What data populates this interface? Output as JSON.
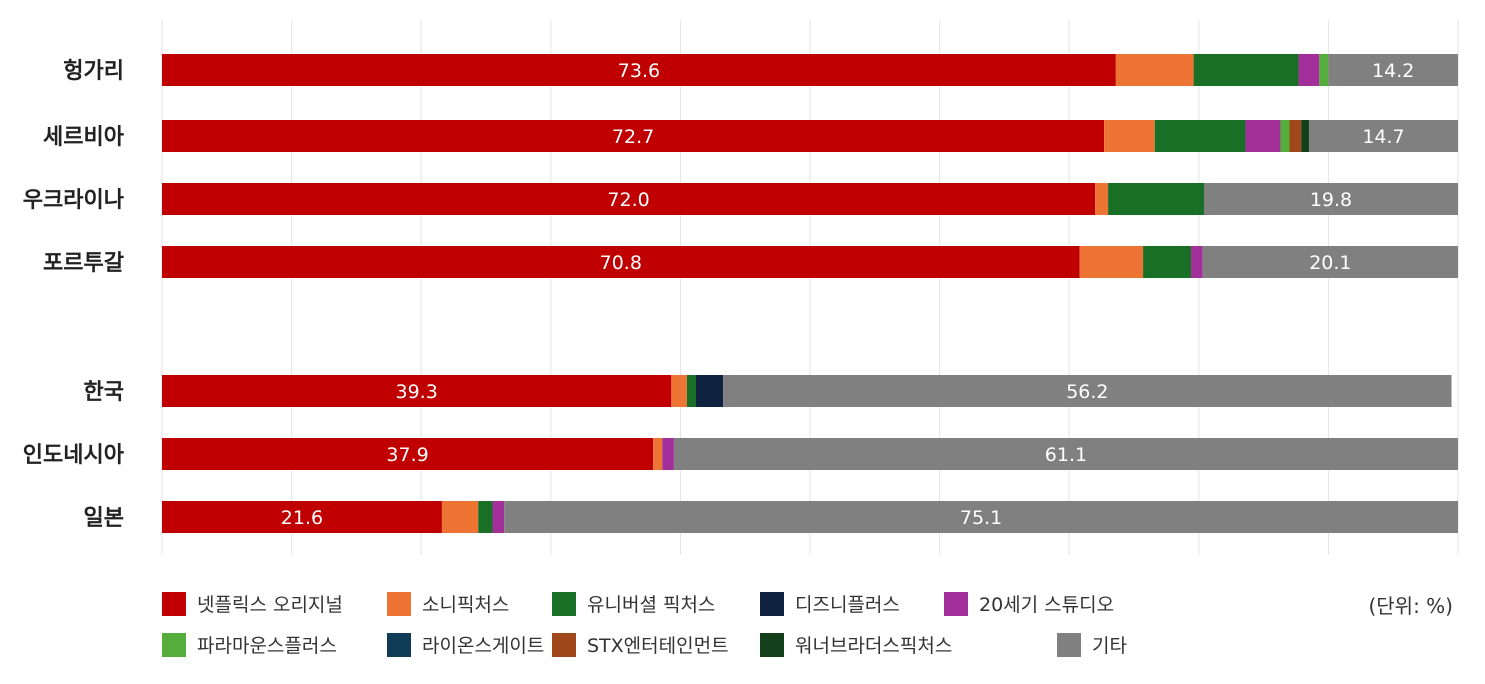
{
  "chart_data": {
    "type": "bar",
    "orientation": "horizontal",
    "stacked": true,
    "unit_label": "(단위: %)",
    "categories": [
      "헝가리",
      "세르비아",
      "우크라이나",
      "포르투갈",
      "한국",
      "인도네시아",
      "일본"
    ],
    "xlim": [
      0,
      100
    ],
    "grid": true,
    "legend_position": "bottom",
    "series": [
      {
        "name": "넷플릭스 오리지널",
        "color": "#c00000",
        "values": [
          73.6,
          72.7,
          72.0,
          70.8,
          39.3,
          37.9,
          21.6
        ],
        "labeled": true
      },
      {
        "name": "소니픽처스",
        "color": "#ed7433",
        "values": [
          6.0,
          3.9,
          1.0,
          4.9,
          1.2,
          0.7,
          2.8
        ]
      },
      {
        "name": "유니버셜 픽처스",
        "color": "#1a6f27",
        "values": [
          8.1,
          7.0,
          7.4,
          3.7,
          0.7,
          0.0,
          1.1
        ]
      },
      {
        "name": "디즈니플러스",
        "color": "#0f2340",
        "values": [
          0,
          0,
          0,
          0,
          2.1,
          0,
          0
        ]
      },
      {
        "name": "20세기 스튜디오",
        "color": "#a3309a",
        "values": [
          1.6,
          2.7,
          0,
          0.9,
          0,
          0.9,
          0.9
        ]
      },
      {
        "name": "파라마운스플러스",
        "color": "#55ad3b",
        "values": [
          0.7,
          0.7,
          0,
          0,
          0,
          0,
          0
        ]
      },
      {
        "name": "라이온스게이트",
        "color": "#0f3d57",
        "values": [
          0,
          0,
          0,
          0,
          0,
          0,
          0
        ]
      },
      {
        "name": "STX엔터테인먼트",
        "color": "#a0471c",
        "values": [
          0,
          0.9,
          0,
          0,
          0,
          0,
          0
        ]
      },
      {
        "name": "워너브라더스픽처스",
        "color": "#143f1b",
        "values": [
          0,
          0.6,
          0,
          0,
          0,
          0,
          0
        ]
      },
      {
        "name": "기타",
        "color": "#808080",
        "values": [
          14.2,
          14.7,
          19.8,
          20.1,
          56.2,
          61.1,
          75.1
        ],
        "labeled": true
      }
    ]
  }
}
